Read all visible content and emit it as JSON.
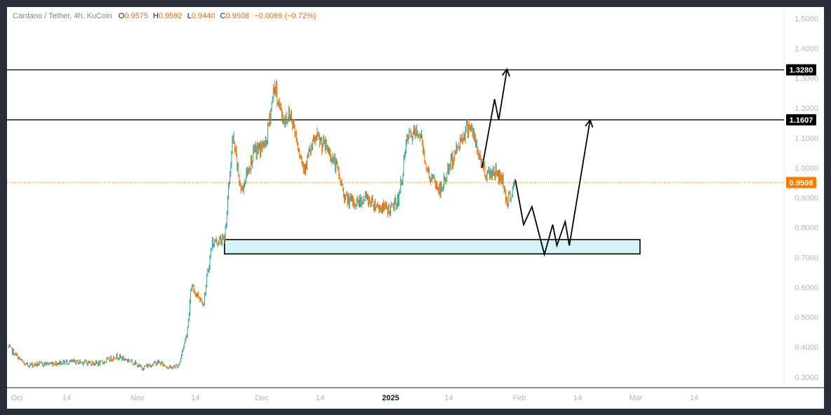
{
  "header": {
    "symbol": "Cardano / Tether, 4h, KuCoin",
    "open_label": "O",
    "open": "0.9575",
    "high_label": "H",
    "high": "0.9592",
    "low_label": "L",
    "low": "0.9440",
    "close_label": "C",
    "close": "0.9508",
    "change": "−0.0069 (−0.72%)"
  },
  "colors": {
    "up": "#26a69a",
    "down": "#ef6c00",
    "line": "#000000",
    "zone_fill": "#d3f5f7",
    "price_tag": "#f57c00",
    "level_tag": "#000000"
  },
  "chart_data": {
    "type": "candlestick",
    "ylim": [
      0.26,
      1.52
    ],
    "y_ticks": [
      "1.5000",
      "1.4000",
      "1.3000",
      "1.2000",
      "1.1000",
      "1.0000",
      "0.9000",
      "0.8000",
      "0.7000",
      "0.6000",
      "0.5000",
      "0.4000",
      "0.3000"
    ],
    "x_ticks": [
      "Oct",
      "14",
      "Nov",
      "14",
      "Dec",
      "14",
      "2025",
      "14",
      "Feb",
      "14",
      "Mar",
      "14"
    ],
    "x_ticks_bold": [
      "2025"
    ],
    "levels": [
      {
        "value": 1.328,
        "label": "1.3280"
      },
      {
        "value": 1.1607,
        "label": "1.1607"
      }
    ],
    "last_price": {
      "value": 0.9508,
      "label": "0.9508"
    },
    "support_zone": {
      "from": "2024-11-21",
      "to": "2025-03-01",
      "low": 0.712,
      "high": 0.76
    },
    "price_path": [
      [
        "2024-09-30",
        0.4
      ],
      [
        "2024-10-04",
        0.34
      ],
      [
        "2024-10-10",
        0.345
      ],
      [
        "2024-10-14",
        0.35
      ],
      [
        "2024-10-18",
        0.35
      ],
      [
        "2024-10-22",
        0.345
      ],
      [
        "2024-10-26",
        0.37
      ],
      [
        "2024-10-30",
        0.35
      ],
      [
        "2024-11-01",
        0.33
      ],
      [
        "2024-11-05",
        0.35
      ],
      [
        "2024-11-08",
        0.33
      ],
      [
        "2024-11-10",
        0.34
      ],
      [
        "2024-11-12",
        0.45
      ],
      [
        "2024-11-13",
        0.6
      ],
      [
        "2024-11-16",
        0.55
      ],
      [
        "2024-11-18",
        0.75
      ],
      [
        "2024-11-21",
        0.76
      ],
      [
        "2024-11-23",
        1.1
      ],
      [
        "2024-11-25",
        0.92
      ],
      [
        "2024-11-28",
        1.05
      ],
      [
        "2024-12-01",
        1.08
      ],
      [
        "2024-12-03",
        1.28
      ],
      [
        "2024-12-05",
        1.16
      ],
      [
        "2024-12-07",
        1.18
      ],
      [
        "2024-12-10",
        1.0
      ],
      [
        "2024-12-13",
        1.1
      ],
      [
        "2024-12-16",
        1.06
      ],
      [
        "2024-12-18",
        1.0
      ],
      [
        "2024-12-20",
        0.9
      ],
      [
        "2024-12-22",
        0.88
      ],
      [
        "2024-12-25",
        0.9
      ],
      [
        "2024-12-28",
        0.87
      ],
      [
        "2024-12-31",
        0.86
      ],
      [
        "2025-01-02",
        0.9
      ],
      [
        "2025-01-04",
        1.1
      ],
      [
        "2025-01-07",
        1.12
      ],
      [
        "2025-01-09",
        0.98
      ],
      [
        "2025-01-12",
        0.92
      ],
      [
        "2025-01-14",
        1.0
      ],
      [
        "2025-01-17",
        1.1
      ],
      [
        "2025-01-19",
        1.15
      ],
      [
        "2025-01-21",
        1.05
      ],
      [
        "2025-01-23",
        0.98
      ],
      [
        "2025-01-25",
        0.99
      ],
      [
        "2025-01-27",
        0.96
      ],
      [
        "2025-01-28",
        0.88
      ],
      [
        "2025-01-30",
        0.95
      ]
    ],
    "projections": [
      {
        "name": "breakout",
        "points": [
          [
            "2025-01-22",
            1.0
          ],
          [
            "2025-01-25",
            1.23
          ],
          [
            "2025-01-26",
            1.16
          ],
          [
            "2025-01-28",
            1.33
          ]
        ]
      },
      {
        "name": "retest",
        "points": [
          [
            "2025-01-30",
            0.96
          ],
          [
            "2025-02-01",
            0.81
          ],
          [
            "2025-02-03",
            0.87
          ],
          [
            "2025-02-06",
            0.71
          ],
          [
            "2025-02-08",
            0.81
          ],
          [
            "2025-02-09",
            0.74
          ],
          [
            "2025-02-11",
            0.82
          ],
          [
            "2025-02-12",
            0.74
          ],
          [
            "2025-02-17",
            1.16
          ]
        ]
      }
    ]
  }
}
